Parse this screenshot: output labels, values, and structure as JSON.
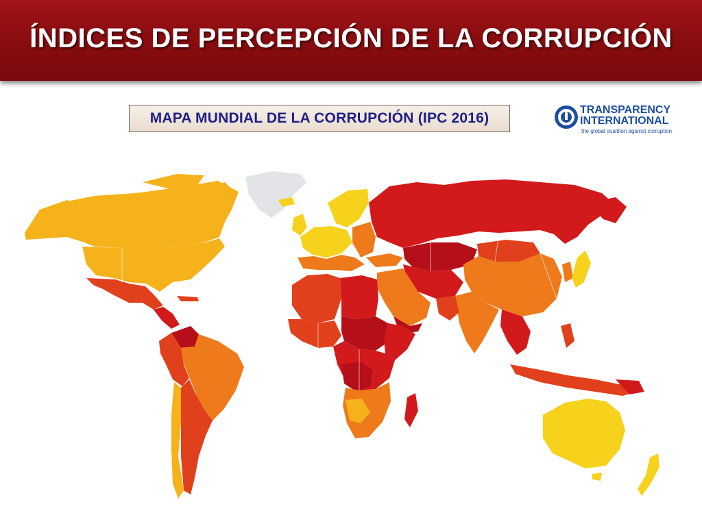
{
  "slide": {
    "title": "ÍNDICES DE PERCEPCIÓN DE LA CORRUPCIÓN",
    "map_title": "MAPA MUNDIAL DE LA CORRUPCIÓN  (IPC 2016)"
  },
  "logo": {
    "line1": "TRANSPARENCY",
    "line2": "INTERNATIONAL",
    "tagline": "the global coalition against corruption"
  },
  "map": {
    "palette": {
      "very_clean": "#f7d21d",
      "clean": "#f6b21a",
      "mid": "#ee7a1c",
      "corrupt": "#e0401c",
      "very_corrupt": "#d21a1c",
      "highly_corrupt": "#b5101a",
      "no_data": "#e2e4e8",
      "header_red": "#8a0d10"
    }
  }
}
